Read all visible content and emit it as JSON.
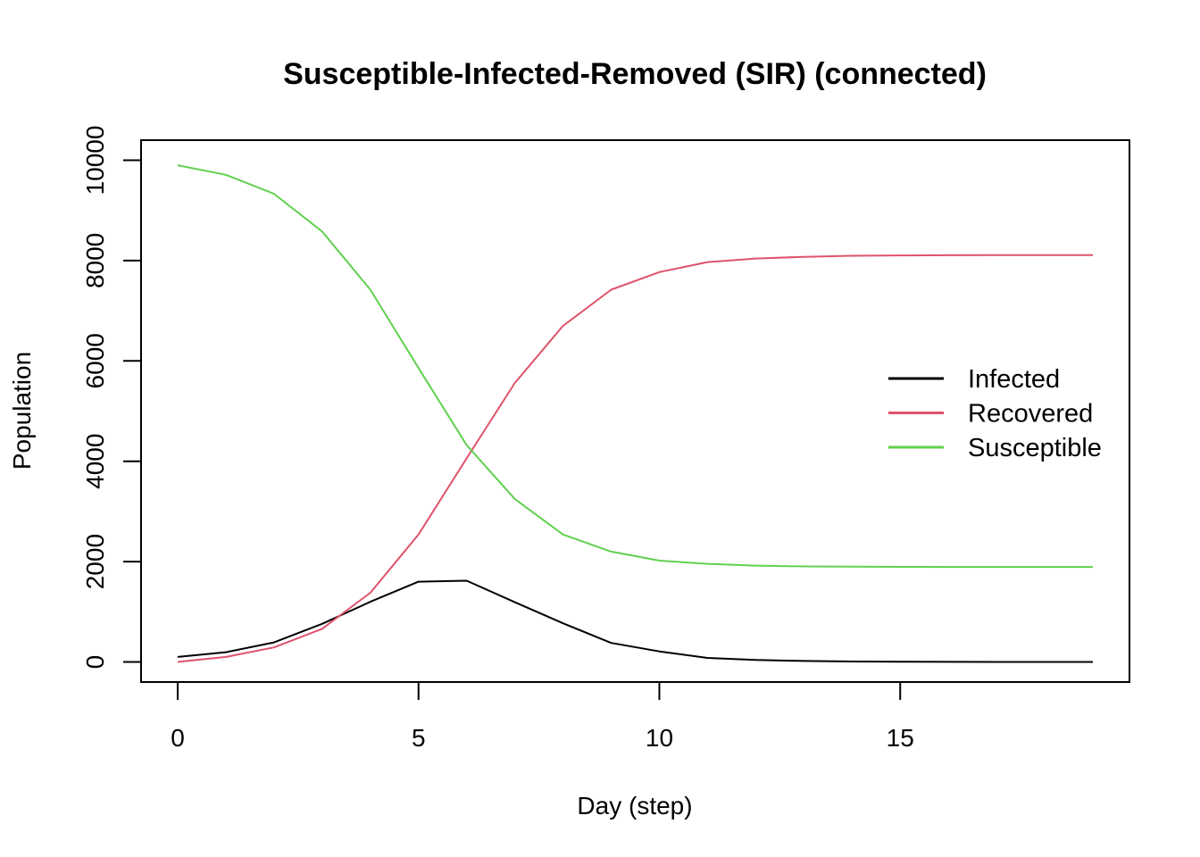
{
  "chart_data": {
    "type": "line",
    "title": "Susceptible-Infected-Removed (SIR) (connected)",
    "xlabel": "Day (step)",
    "ylabel": "Population",
    "x": [
      0,
      1,
      2,
      3,
      4,
      5,
      6,
      7,
      8,
      9,
      10,
      11,
      12,
      13,
      14,
      15,
      16,
      17,
      18,
      19
    ],
    "xlim": [
      -0.76,
      19.76
    ],
    "ylim": [
      -400,
      10400
    ],
    "xticks": [
      0,
      5,
      10,
      15
    ],
    "xtick_labels": [
      "0",
      "5",
      "10",
      "15"
    ],
    "yticks": [
      0,
      2000,
      4000,
      6000,
      8000,
      10000
    ],
    "ytick_labels": [
      "0",
      "2000",
      "4000",
      "6000",
      "8000",
      "10000"
    ],
    "grid": false,
    "legend_position": "right",
    "series": [
      {
        "name": "Infected",
        "color": "#000000",
        "values": [
          100,
          195,
          390,
          760,
          1200,
          1600,
          1620,
          1190,
          770,
          380,
          210,
          80,
          40,
          20,
          10,
          5,
          2,
          1,
          0,
          0
        ]
      },
      {
        "name": "Recovered",
        "color": "#DF536B",
        "values": [
          0,
          100,
          290,
          660,
          1380,
          2540,
          4060,
          5560,
          6700,
          7420,
          7770,
          7970,
          8040,
          8075,
          8095,
          8103,
          8106,
          8108,
          8108,
          8108
        ]
      },
      {
        "name": "Susceptible",
        "color": "#61D04F",
        "values": [
          9900,
          9710,
          9330,
          8580,
          7420,
          5860,
          4320,
          3250,
          2540,
          2200,
          2020,
          1955,
          1920,
          1905,
          1898,
          1895,
          1894,
          1893,
          1893,
          1893
        ]
      }
    ]
  }
}
